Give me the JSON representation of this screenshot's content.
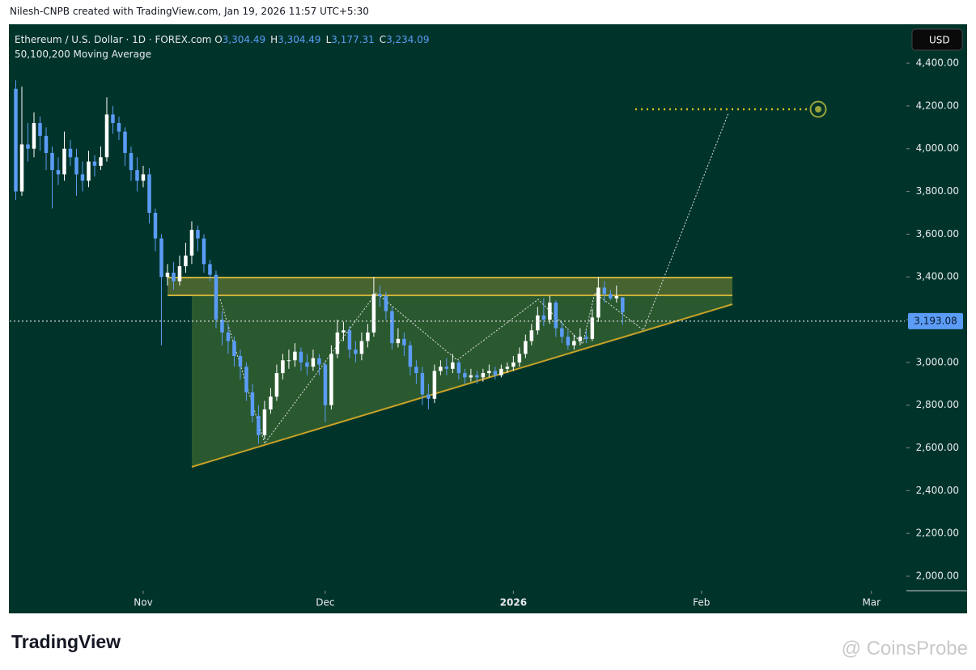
{
  "header": "Nilesh-CNPB created with TradingView.com, Jan 19, 2026 11:57 UTC+5:30",
  "chart_data": {
    "type": "candlestick",
    "title": "Ethereum / U.S. Dollar · 1D · FOREX.com",
    "legend_ohlc": [
      {
        "key": "O",
        "value": 3304.49,
        "label": "3,304.49"
      },
      {
        "key": "H",
        "value": 3304.49,
        "label": "3,304.49"
      },
      {
        "key": "L",
        "value": 3177.31,
        "label": "3,177.31"
      },
      {
        "key": "C",
        "value": 3234.09,
        "label": "3,234.09"
      }
    ],
    "indicator": "50,100,200 Moving Average",
    "currency": "USD",
    "up_color": "#ffffff",
    "down_color": "#5b9cf6",
    "candles": {
      "open": [
        4280,
        3800,
        4020,
        4000,
        4120,
        4060,
        3980,
        3900,
        3880,
        4000,
        3960,
        3880,
        3850,
        3940,
        3920,
        3960,
        4160,
        4120,
        4080,
        3980,
        3900,
        3850,
        3880,
        3700,
        3580,
        3400,
        3420,
        3380,
        3450,
        3500,
        3620,
        3580,
        3460,
        3410,
        3200,
        3140,
        3100,
        3030,
        2980,
        2860,
        2750,
        2660,
        2780,
        2840,
        2950,
        3010,
        3010,
        3050,
        3000,
        2980,
        3020,
        2990,
        2800,
        3040,
        3140,
        3150,
        3060,
        3040,
        3100,
        3140,
        3320,
        3310,
        3240,
        3090,
        3110,
        3080,
        2980,
        2950,
        2850,
        2830,
        2960,
        2980,
        2970,
        3000,
        2950,
        2930,
        2940,
        2930,
        2950,
        2960,
        2940,
        2970,
        2980,
        3000,
        3040,
        3100,
        3150,
        3220,
        3200,
        3280,
        3160,
        3120,
        3080,
        3100,
        3120,
        3110,
        3210,
        3350,
        3320,
        3300,
        3304.49
      ],
      "high": [
        4320,
        4290,
        4120,
        4170,
        4150,
        4100,
        4010,
        3960,
        4080,
        4040,
        4000,
        3940,
        3990,
        3970,
        4010,
        4240,
        4200,
        4150,
        4100,
        4010,
        3960,
        3920,
        3910,
        3720,
        3600,
        3460,
        3470,
        3500,
        3560,
        3660,
        3640,
        3600,
        3480,
        3430,
        3240,
        3180,
        3120,
        3060,
        3000,
        2900,
        2800,
        2820,
        2880,
        2990,
        3040,
        3060,
        3090,
        3070,
        3040,
        3060,
        3040,
        3000,
        3080,
        3200,
        3190,
        3170,
        3100,
        3140,
        3180,
        3400,
        3360,
        3330,
        3260,
        3160,
        3140,
        3100,
        3010,
        2980,
        2900,
        2990,
        3010,
        3020,
        3040,
        3010,
        2970,
        2970,
        2960,
        2970,
        2990,
        2980,
        2990,
        3000,
        3030,
        3070,
        3130,
        3180,
        3260,
        3300,
        3310,
        3290,
        3190,
        3150,
        3130,
        3160,
        3150,
        3250,
        3400,
        3380,
        3340,
        3360,
        3304.49
      ],
      "low": [
        3760,
        3780,
        3940,
        3960,
        3990,
        3900,
        3720,
        3830,
        3850,
        3920,
        3780,
        3800,
        3820,
        3870,
        3900,
        3940,
        4070,
        4040,
        3920,
        3850,
        3800,
        3820,
        3650,
        3520,
        3080,
        3360,
        3340,
        3360,
        3420,
        3460,
        3520,
        3420,
        3380,
        3160,
        3080,
        3040,
        2980,
        2920,
        2820,
        2720,
        2620,
        2640,
        2760,
        2820,
        2920,
        2970,
        2980,
        2960,
        2940,
        2960,
        2940,
        2720,
        2780,
        3020,
        3100,
        3020,
        3000,
        3010,
        3070,
        3120,
        3260,
        3200,
        3060,
        3070,
        3030,
        2940,
        2900,
        2800,
        2780,
        2810,
        2940,
        2940,
        2950,
        2920,
        2900,
        2910,
        2900,
        2910,
        2930,
        2920,
        2930,
        2950,
        2960,
        2980,
        3020,
        3080,
        3130,
        3170,
        3180,
        3120,
        3090,
        3060,
        3060,
        3080,
        3090,
        3100,
        3190,
        3280,
        3290,
        3280,
        3177.31
      ],
      "close": [
        3800,
        4020,
        4000,
        4120,
        4060,
        3980,
        3900,
        3880,
        4000,
        3960,
        3880,
        3850,
        3940,
        3920,
        3960,
        4160,
        4120,
        4080,
        3980,
        3900,
        3850,
        3880,
        3700,
        3580,
        3400,
        3420,
        3380,
        3450,
        3500,
        3620,
        3580,
        3460,
        3410,
        3200,
        3140,
        3100,
        3030,
        2980,
        2860,
        2750,
        2660,
        2780,
        2840,
        2950,
        3010,
        3010,
        3050,
        3000,
        2980,
        3020,
        2990,
        2800,
        3040,
        3140,
        3150,
        3060,
        3040,
        3100,
        3140,
        3320,
        3310,
        3240,
        3090,
        3110,
        3080,
        2980,
        2950,
        2850,
        2830,
        2960,
        2980,
        2970,
        3000,
        2950,
        2930,
        2940,
        2930,
        2950,
        2960,
        2940,
        2970,
        2980,
        3000,
        3040,
        3100,
        3150,
        3220,
        3200,
        3280,
        3160,
        3120,
        3080,
        3100,
        3120,
        3110,
        3210,
        3350,
        3320,
        3300,
        3310,
        3234.09
      ]
    },
    "xlim": [
      -1,
      146.5
    ],
    "xticks": [
      {
        "value": 21,
        "label": "Nov"
      },
      {
        "value": 51,
        "label": "Dec"
      },
      {
        "value": 82,
        "label": "2026"
      },
      {
        "value": 113,
        "label": "Feb"
      },
      {
        "value": 141,
        "label": "Mar"
      }
    ],
    "ylim": [
      1932,
      4582
    ],
    "yticks": [
      {
        "value": 2000,
        "label": "2,000.00"
      },
      {
        "value": 2200,
        "label": "2,200.00"
      },
      {
        "value": 2400,
        "label": "2,400.00"
      },
      {
        "value": 2600,
        "label": "2,600.00"
      },
      {
        "value": 2800,
        "label": "2,800.00"
      },
      {
        "value": 3000,
        "label": "3,000.00"
      },
      {
        "value": 3200,
        "label": "3,200.00"
      },
      {
        "value": 3400,
        "label": "3,400.00"
      },
      {
        "value": 3600,
        "label": "3,600.00"
      },
      {
        "value": 3800,
        "label": "3,800.00"
      },
      {
        "value": 4000,
        "label": "4,000.00"
      },
      {
        "value": 4200,
        "label": "4,200.00"
      },
      {
        "value": 4400,
        "label": "4,400.00"
      }
    ],
    "current_price": {
      "value": 3193.08,
      "label": "3,193.08"
    }
  },
  "footer": {
    "logo": "TradingView",
    "watermark": "@ CoinsProbe"
  }
}
